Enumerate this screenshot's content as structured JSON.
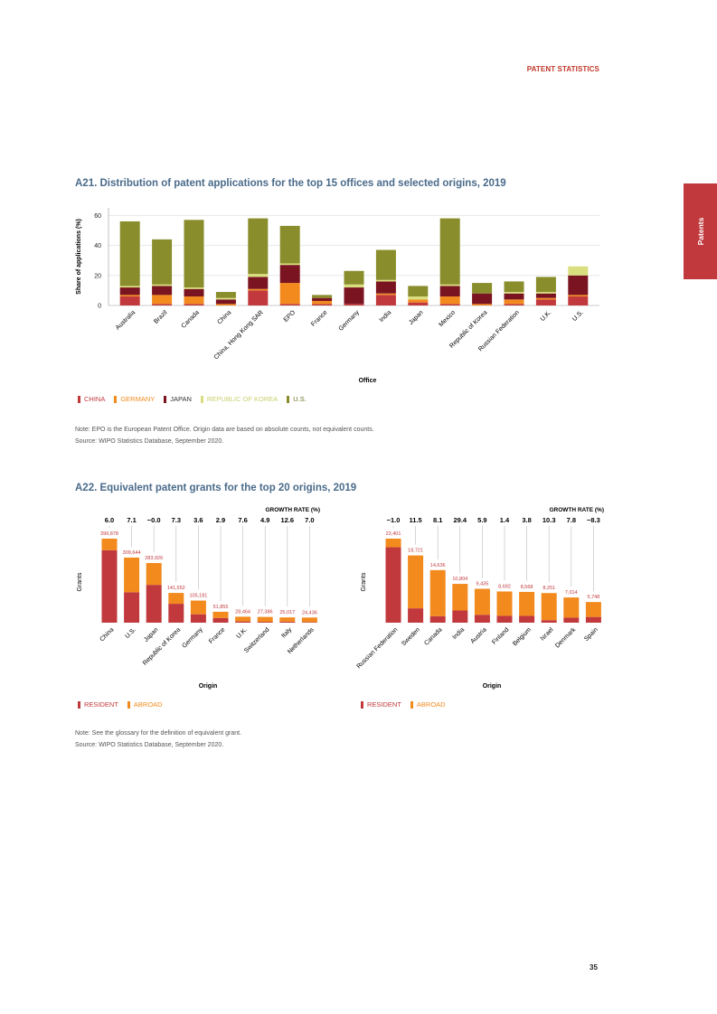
{
  "header": "PATENT STATISTICS",
  "side_tab": "Patents",
  "page_number": "35",
  "colors": {
    "china": "#c1393c",
    "germany": "#f28a1e",
    "japan": "#7a1420",
    "korea": "#d9df7e",
    "us": "#8a8d2c",
    "resident": "#c1393c",
    "abroad": "#f28a1e",
    "grid": "#dcdcdc",
    "axis": "#999999",
    "title": "#4a6b8a",
    "label_red": "#c1393c"
  },
  "a21": {
    "title": "A21. Distribution of patent applications for the top 15 offices and selected origins, 2019",
    "legend": [
      {
        "label": "CHINA",
        "color": "#c1393c",
        "text_color": "#c1393c"
      },
      {
        "label": "GERMANY",
        "color": "#f28a1e",
        "text_color": "#f28a1e"
      },
      {
        "label": "JAPAN",
        "color": "#7a1420",
        "text_color": "#333333"
      },
      {
        "label": "REPUBLIC OF KOREA",
        "color": "#d9df7e",
        "text_color": "#c9cf6e"
      },
      {
        "label": "U.S.",
        "color": "#8a8d2c",
        "text_color": "#6e7124"
      }
    ],
    "note": "Note: EPO is the European Patent Office. Origin data are based on absolute counts, not equivalent counts.",
    "source": "Source: WIPO Statistics Database, September 2020."
  },
  "a22": {
    "title": "A22. Equivalent patent grants for the top 20 origins, 2019",
    "legend": [
      {
        "label": "RESIDENT",
        "color": "#c1393c"
      },
      {
        "label": "ABROAD",
        "color": "#f28a1e"
      }
    ],
    "note": "Note: See the glossary for the definition of equivalent grant.",
    "source": "Source: WIPO Statistics Database, September 2020."
  },
  "chart_data": [
    {
      "type": "bar",
      "stacked": true,
      "title": "A21. Distribution of patent applications for the top 15 offices and selected origins, 2019",
      "xlabel": "Office",
      "ylabel": "Share of applications (%)",
      "ylim": [
        0,
        65
      ],
      "yticks": [
        0,
        20,
        40,
        60
      ],
      "grid": true,
      "categories": [
        "Australia",
        "Brazil",
        "Canada",
        "China",
        "China, Hong Kong SAR",
        "EPO",
        "France",
        "Germany",
        "India",
        "Japan",
        "Mexico",
        "Republic of Korea",
        "Russian Federation",
        "U.K.",
        "U.S."
      ],
      "series": [
        {
          "name": "CHINA",
          "values": [
            6,
            1,
            1,
            0,
            10,
            1,
            1,
            1,
            7,
            2,
            1,
            0,
            1,
            4,
            6
          ]
        },
        {
          "name": "GERMANY",
          "values": [
            1,
            6,
            5,
            1,
            1,
            14,
            2,
            0,
            1,
            2,
            5,
            1,
            3,
            1,
            1
          ]
        },
        {
          "name": "JAPAN",
          "values": [
            5,
            6,
            5,
            3,
            8,
            12,
            2,
            11,
            8,
            0,
            7,
            7,
            4,
            3,
            13
          ]
        },
        {
          "name": "REPUBLIC OF KOREA",
          "values": [
            1,
            1,
            1,
            1,
            2,
            1,
            0,
            2,
            1,
            2,
            1,
            0,
            1,
            1,
            6
          ]
        },
        {
          "name": "U.S.",
          "values": [
            43,
            30,
            45,
            4,
            37,
            25,
            2,
            9,
            20,
            7,
            44,
            7,
            7,
            10,
            0
          ]
        }
      ]
    },
    {
      "type": "bar",
      "stacked": true,
      "title": "A22. Equivalent patent grants for the top 20 origins, 2019",
      "xlabel": "Origin",
      "ylabel": "Grants",
      "growth_rate_label": "GROWTH RATE (%)",
      "categories": [
        "China",
        "U.S.",
        "Japan",
        "Republic of Korea",
        "Germany",
        "France",
        "U.K.",
        "Switzerland",
        "Italy",
        "Netherlands"
      ],
      "totals": [
        399878,
        309644,
        283926,
        141552,
        105181,
        51855,
        28464,
        27386,
        25017,
        24436
      ],
      "total_labels": [
        "399,878",
        "309,644",
        "283,926",
        "141,552",
        "105,181",
        "51,855",
        "28,464",
        "27,386",
        "25,017",
        "24,436"
      ],
      "growth_rates": [
        "6.0",
        "7.1",
        "−0.0",
        "7.3",
        "3.6",
        "2.9",
        "7.6",
        "4.9",
        "12.6",
        "7.0"
      ],
      "series": [
        {
          "name": "RESIDENT",
          "values": [
            345000,
            145000,
            180000,
            90000,
            40000,
            22000,
            6000,
            4000,
            5000,
            3000
          ]
        },
        {
          "name": "ABROAD",
          "values": [
            54878,
            164644,
            103926,
            51552,
            65181,
            29855,
            22464,
            23386,
            20017,
            21436
          ]
        }
      ]
    },
    {
      "type": "bar",
      "stacked": true,
      "title": "A22. Equivalent patent grants for the top 20 origins, 2019",
      "xlabel": "Origin",
      "ylabel": "Grants",
      "growth_rate_label": "GROWTH RATE (%)",
      "categories": [
        "Russian Federation",
        "Sweden",
        "Canada",
        "India",
        "Austria",
        "Finland",
        "Belgium",
        "Israel",
        "Denmark",
        "Spain"
      ],
      "totals": [
        23401,
        18721,
        14636,
        10804,
        9435,
        8692,
        8568,
        8251,
        7014,
        5748
      ],
      "total_labels": [
        "23,401",
        "18,721",
        "14,636",
        "10,804",
        "9,435",
        "8,692",
        "8,568",
        "8,251",
        "7,014",
        "5,748"
      ],
      "growth_rates": [
        "−1.0",
        "11.5",
        "8.1",
        "29.4",
        "5.9",
        "1.4",
        "3.8",
        "10.3",
        "7.8",
        "−8.3"
      ],
      "series": [
        {
          "name": "RESIDENT",
          "values": [
            21000,
            4000,
            1800,
            3400,
            2200,
            1900,
            1900,
            700,
            1400,
            1600
          ]
        },
        {
          "name": "ABROAD",
          "values": [
            2401,
            14721,
            12836,
            7404,
            7235,
            6792,
            6668,
            7551,
            5614,
            4148
          ]
        }
      ]
    }
  ]
}
